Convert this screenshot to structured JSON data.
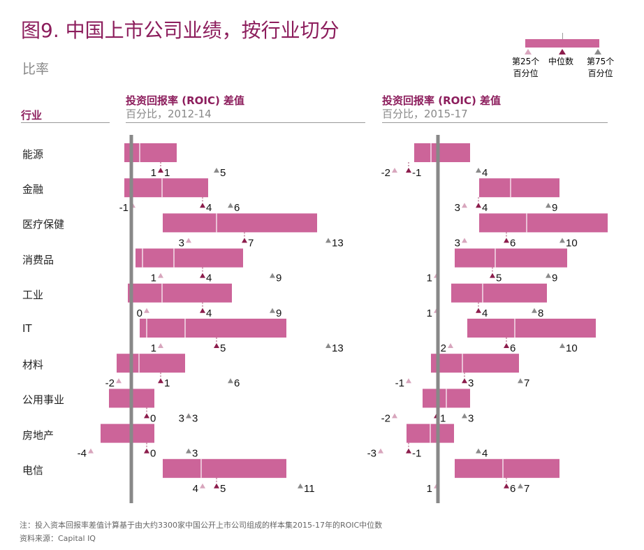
{
  "title": "图9. 中国上市公司业绩，按行业切分",
  "subtitle": "比率",
  "industry_header": "行业",
  "legend": {
    "p25": [
      "第25个",
      "百分位"
    ],
    "median": [
      "中位数"
    ],
    "p75": [
      "第75个",
      "百分位"
    ]
  },
  "colors": {
    "bar": "#cc6499",
    "p25": "#d8a6bd",
    "median": "#8c1d4c",
    "p75": "#8a8a8a",
    "title": "#8c1d5c",
    "reference_line": "#888888"
  },
  "footnote": "注：投入资本回报率差值计算基于由大约3300家中国公开上市公司组成的样本集2015-17年的ROIC中位数",
  "source": "资料来源：Capital IQ",
  "chart_data": {
    "type": "range-bar",
    "industries": [
      "能源",
      "金融",
      "医疗保健",
      "消费品",
      "工业",
      "IT",
      "材料",
      "公用事业",
      "房地产",
      "电信"
    ],
    "panels": [
      {
        "title": "投资回报率 (ROIC) 差值",
        "subtitle": "百分比，2012-14",
        "p25": [
          1,
          -1,
          3,
          1,
          0,
          1,
          -2,
          3,
          -4,
          4
        ],
        "median": [
          1,
          4,
          7,
          4,
          4,
          5,
          1,
          0,
          0,
          5
        ],
        "p75": [
          5,
          6,
          13,
          9,
          9,
          13,
          6,
          3,
          3,
          11
        ],
        "bars": [
          [
            -1.6,
            2.15
          ],
          [
            -1.6,
            4.4
          ],
          [
            1.15,
            12.2
          ],
          [
            -0.8,
            6.9
          ],
          [
            -1.35,
            6.1
          ],
          [
            -0.5,
            10
          ],
          [
            -2.15,
            2.75
          ],
          [
            -2.7,
            0.55
          ],
          [
            -3.3,
            0.55
          ],
          [
            1.15,
            10
          ]
        ],
        "dividers": [
          [
            -0.5
          ],
          [
            1.1
          ],
          [
            5
          ],
          [
            -0.3,
            1.95
          ],
          [
            1.1
          ],
          [
            0,
            2.75
          ],
          [
            -0.55
          ],
          [],
          [],
          [
            3.9
          ]
        ]
      },
      {
        "title": "投资回报率 (ROIC) 差值",
        "subtitle": "百分比，2015-17",
        "p25": [
          -2,
          3,
          3,
          1,
          1,
          2,
          -1,
          -2,
          -3,
          1
        ],
        "median": [
          -1,
          4,
          6,
          5,
          4,
          6,
          3,
          1,
          -1,
          6
        ],
        "p75": [
          4,
          9,
          10,
          9,
          8,
          10,
          7,
          3,
          4,
          7
        ],
        "bars": [
          [
            -0.6,
            3.4
          ],
          [
            4.05,
            9.8
          ],
          [
            4.05,
            13.25
          ],
          [
            2.3,
            10.35
          ],
          [
            2.05,
            8.9
          ],
          [
            3.2,
            12.4
          ],
          [
            0.6,
            6.9
          ],
          [
            0,
            3.4
          ],
          [
            -1.15,
            2.25
          ],
          [
            2.3,
            9.8
          ]
        ],
        "dividers": [
          [
            0.6
          ],
          [
            6.3
          ],
          [
            7.45
          ],
          [
            5.2
          ],
          [
            4.3
          ],
          [
            6.6
          ],
          [
            2.85
          ],
          [
            1.7
          ],
          [
            0.55
          ],
          [
            5.75
          ]
        ]
      }
    ]
  }
}
